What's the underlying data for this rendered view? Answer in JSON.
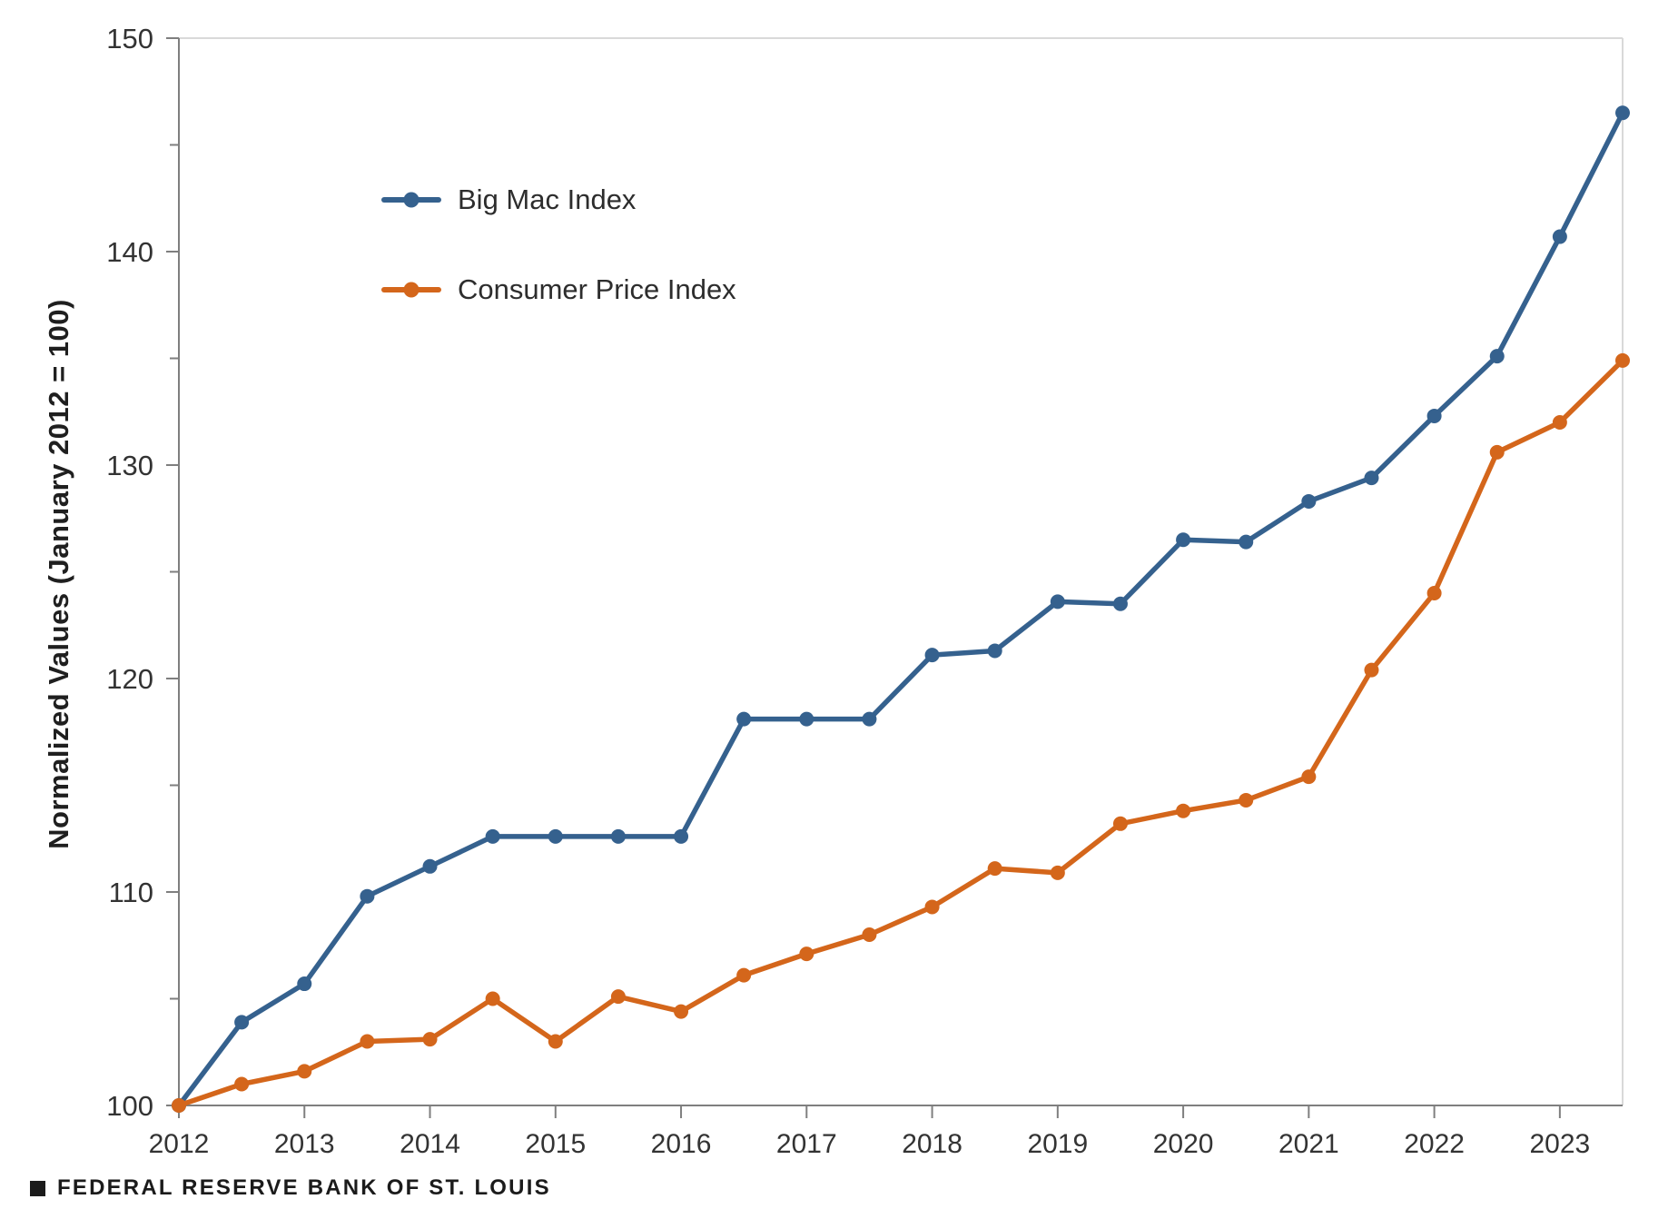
{
  "chart_data": {
    "type": "line",
    "title": "",
    "xlabel": "",
    "ylabel": "Normalized Values (January 2012 = 100)",
    "xlim": [
      2012,
      2023.5
    ],
    "ylim": [
      100,
      150
    ],
    "grid": "off",
    "legend_position": "upper-left-inside",
    "y_major_ticks": [
      100,
      110,
      120,
      130,
      140,
      150
    ],
    "y_minor_ticks": [
      105,
      115,
      125,
      135,
      145
    ],
    "x_tick_positions": [
      2012,
      2013,
      2014,
      2015,
      2016,
      2017,
      2018,
      2019,
      2020,
      2021,
      2022,
      2023
    ],
    "x_tick_labels": [
      "2012",
      "2013",
      "2014",
      "2015",
      "2016",
      "2017",
      "2018",
      "2019",
      "2020",
      "2021",
      "2022",
      "2023"
    ],
    "x": [
      2012,
      2012.5,
      2013,
      2013.5,
      2014,
      2014.5,
      2015,
      2015.5,
      2016,
      2016.5,
      2017,
      2017.5,
      2018,
      2018.5,
      2019,
      2019.5,
      2020,
      2020.5,
      2021,
      2021.5,
      2022,
      2022.5,
      2023,
      2023.5
    ],
    "series": [
      {
        "name": "Big Mac Index",
        "color": "#35618e",
        "values": [
          100,
          103.9,
          105.7,
          109.8,
          111.2,
          112.6,
          112.6,
          112.6,
          112.6,
          118.1,
          118.1,
          118.1,
          121.1,
          121.3,
          123.6,
          123.5,
          126.5,
          126.4,
          128.3,
          129.4,
          132.3,
          135.1,
          140.7,
          146.5
        ]
      },
      {
        "name": "Consumer Price Index",
        "color": "#d4661b",
        "values": [
          100,
          101.0,
          101.6,
          103.0,
          103.1,
          105.0,
          103.0,
          105.1,
          104.4,
          106.1,
          107.1,
          108.0,
          109.3,
          111.1,
          110.9,
          113.2,
          113.8,
          114.3,
          115.4,
          120.4,
          124.0,
          130.6,
          132.0,
          134.9
        ]
      }
    ]
  },
  "footer": {
    "brand": "FEDERAL RESERVE BANK OF ST. LOUIS"
  },
  "colors": {
    "background": "#ffffff",
    "axis_line": "#7f7f7f",
    "plot_border": "#d9d9d9",
    "tick_mark": "#7f7f7f",
    "tick_label": "#333333",
    "axis_title": "#1f1f1f",
    "footer_square": "#1b1b1b"
  }
}
